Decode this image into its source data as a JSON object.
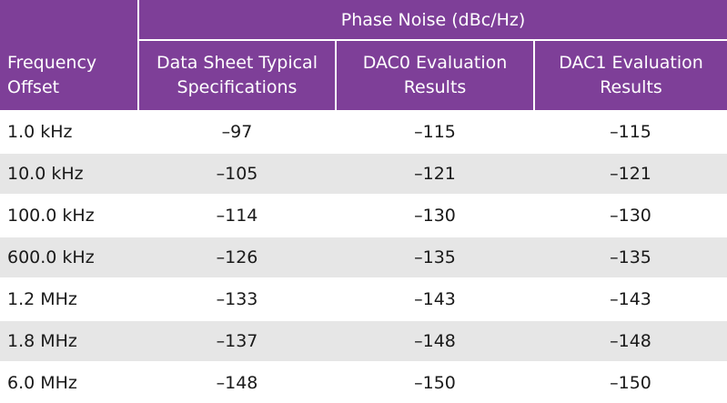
{
  "table": {
    "super_header": "Phase Noise (dBc/Hz)",
    "headers": [
      "Frequency Offset",
      "Data Sheet Typical Specifications",
      "DAC0 Evaluation Results",
      "DAC1 Evaluation Results"
    ],
    "header_lines": [
      [
        "Frequency",
        "Offset"
      ],
      [
        "Data Sheet Typical",
        "Specifications"
      ],
      [
        "DAC0 Evaluation",
        "Results"
      ],
      [
        "DAC1 Evaluation",
        "Results"
      ]
    ],
    "rows": [
      [
        "1.0 kHz",
        "–97",
        "–115",
        "–115"
      ],
      [
        "10.0 kHz",
        "–105",
        "–121",
        "–121"
      ],
      [
        "100.0 kHz",
        "–114",
        "–130",
        "–130"
      ],
      [
        "600.0 kHz",
        "–126",
        "–135",
        "–135"
      ],
      [
        "1.2 MHz",
        "–133",
        "–143",
        "–143"
      ],
      [
        "1.8 MHz",
        "–137",
        "–148",
        "–148"
      ],
      [
        "6.0 MHz",
        "–148",
        "–150",
        "–150"
      ]
    ]
  },
  "colors": {
    "header_bg": "#7e3f98",
    "header_text": "#ffffff",
    "row_alt_bg": "#e6e6e6",
    "row_bg": "#ffffff"
  }
}
